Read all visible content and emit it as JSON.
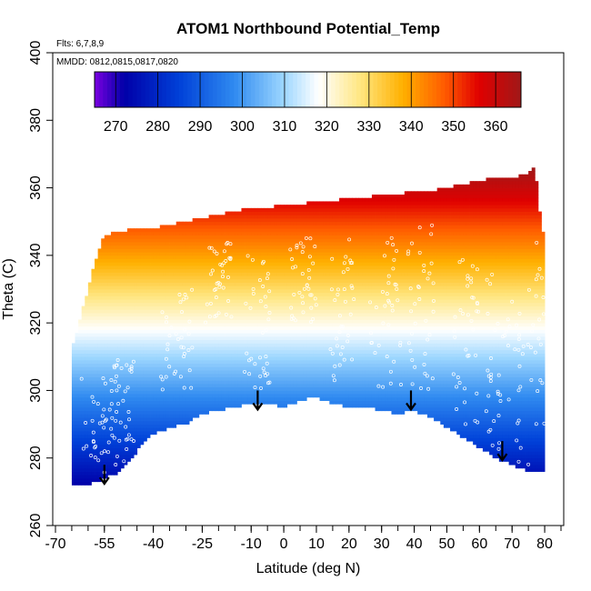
{
  "chart_data": {
    "type": "heatmap",
    "title": "ATOM1 Northbound Potential_Temp",
    "flights_note": "Flts: 6,7,8,9",
    "dates_note": "MMDD: 0812,0815,0817,0820",
    "xlabel": "Latitude (deg N)",
    "ylabel": "Theta (C)",
    "xlim": [
      -70,
      85
    ],
    "ylim": [
      260,
      400
    ],
    "x_tick_labels": [
      "-70",
      "-55",
      "-40",
      "-25",
      "-10",
      "0",
      "10",
      "20",
      "30",
      "40",
      "50",
      "60",
      "70",
      "80"
    ],
    "x_ticks": [
      -70,
      -55,
      -40,
      -25,
      -10,
      0,
      10,
      20,
      30,
      40,
      50,
      60,
      70,
      80
    ],
    "y_ticks": [
      260,
      280,
      300,
      320,
      340,
      360,
      380,
      400
    ],
    "colorbar": {
      "min": 265,
      "max": 366,
      "tick_values": [
        270,
        280,
        290,
        300,
        310,
        320,
        330,
        340,
        350,
        360
      ],
      "tick_labels": [
        "270",
        "280",
        "290",
        "300",
        "310",
        "320",
        "330",
        "340",
        "350",
        "360"
      ],
      "colors": [
        "#7a00e0",
        "#0000a8",
        "#0040d8",
        "#2f8af0",
        "#9fd8ff",
        "#ffffff",
        "#ffe680",
        "#ffb000",
        "#ff5a00",
        "#e00000",
        "#a01818"
      ],
      "color_stops": [
        265,
        272,
        285,
        298,
        310,
        318,
        328,
        338,
        348,
        356,
        366
      ]
    },
    "field_top": {
      "lat": [
        -65,
        -60,
        -57,
        -55,
        -50,
        -45,
        -40,
        -35,
        -30,
        -25,
        -20,
        -15,
        -10,
        -5,
        0,
        5,
        10,
        15,
        20,
        25,
        30,
        35,
        40,
        45,
        50,
        55,
        60,
        65,
        70,
        74,
        77,
        79,
        80
      ],
      "theta": [
        312,
        330,
        341,
        346,
        347,
        348,
        348,
        349,
        350,
        351,
        352,
        353,
        354,
        354,
        355,
        355,
        356,
        356,
        357,
        357,
        358,
        358,
        359,
        359,
        360,
        361,
        362,
        363,
        363,
        364,
        366,
        348,
        346
      ]
    },
    "field_bottom": {
      "lat": [
        -65,
        -60,
        -55,
        -50,
        -45,
        -40,
        -35,
        -30,
        -25,
        -20,
        -15,
        -10,
        -5,
        0,
        5,
        10,
        15,
        20,
        25,
        30,
        35,
        40,
        45,
        50,
        55,
        60,
        65,
        70,
        75,
        80
      ],
      "theta": [
        272,
        272,
        274,
        276,
        282,
        287,
        289,
        290,
        293,
        294,
        295,
        296,
        296,
        295,
        297,
        298,
        296,
        295,
        295,
        294,
        293,
        294,
        292,
        289,
        286,
        283,
        280,
        278,
        276,
        276
      ]
    },
    "profile_markers": [
      {
        "lat": -55,
        "theta": 278
      },
      {
        "lat": -8,
        "theta": 300
      },
      {
        "lat": 39,
        "theta": 300
      },
      {
        "lat": 67,
        "theta": 285
      }
    ]
  }
}
